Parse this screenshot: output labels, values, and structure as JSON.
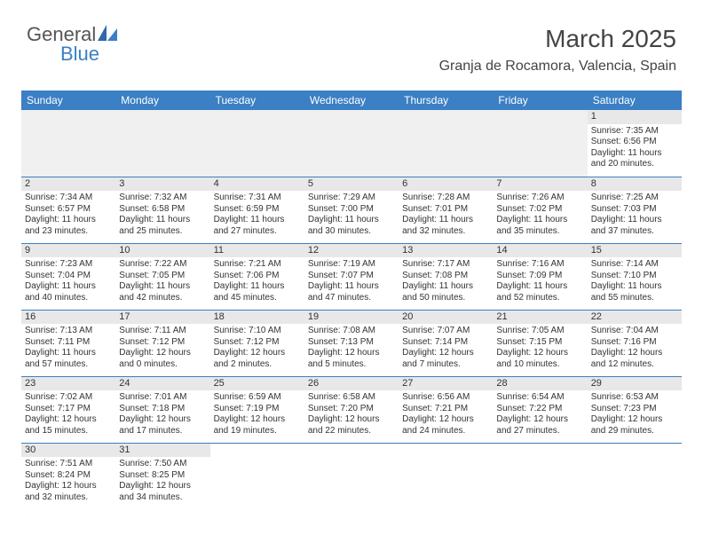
{
  "brand": {
    "part1": "General",
    "part2": "Blue"
  },
  "title": "March 2025",
  "location": "Granja de Rocamora, Valencia, Spain",
  "colors": {
    "header_bg": "#3b7fc4",
    "header_text": "#ffffff",
    "daynum_bg": "#e8e8e8",
    "empty_bg": "#f0f0f0",
    "border": "#3b7fc4",
    "page_bg": "#ffffff",
    "text": "#333333"
  },
  "weekdays": [
    "Sunday",
    "Monday",
    "Tuesday",
    "Wednesday",
    "Thursday",
    "Friday",
    "Saturday"
  ],
  "weeks": [
    [
      {
        "empty": true
      },
      {
        "empty": true
      },
      {
        "empty": true
      },
      {
        "empty": true
      },
      {
        "empty": true
      },
      {
        "empty": true
      },
      {
        "day": "1",
        "sunrise": "Sunrise: 7:35 AM",
        "sunset": "Sunset: 6:56 PM",
        "daylight1": "Daylight: 11 hours",
        "daylight2": "and 20 minutes."
      }
    ],
    [
      {
        "day": "2",
        "sunrise": "Sunrise: 7:34 AM",
        "sunset": "Sunset: 6:57 PM",
        "daylight1": "Daylight: 11 hours",
        "daylight2": "and 23 minutes."
      },
      {
        "day": "3",
        "sunrise": "Sunrise: 7:32 AM",
        "sunset": "Sunset: 6:58 PM",
        "daylight1": "Daylight: 11 hours",
        "daylight2": "and 25 minutes."
      },
      {
        "day": "4",
        "sunrise": "Sunrise: 7:31 AM",
        "sunset": "Sunset: 6:59 PM",
        "daylight1": "Daylight: 11 hours",
        "daylight2": "and 27 minutes."
      },
      {
        "day": "5",
        "sunrise": "Sunrise: 7:29 AM",
        "sunset": "Sunset: 7:00 PM",
        "daylight1": "Daylight: 11 hours",
        "daylight2": "and 30 minutes."
      },
      {
        "day": "6",
        "sunrise": "Sunrise: 7:28 AM",
        "sunset": "Sunset: 7:01 PM",
        "daylight1": "Daylight: 11 hours",
        "daylight2": "and 32 minutes."
      },
      {
        "day": "7",
        "sunrise": "Sunrise: 7:26 AM",
        "sunset": "Sunset: 7:02 PM",
        "daylight1": "Daylight: 11 hours",
        "daylight2": "and 35 minutes."
      },
      {
        "day": "8",
        "sunrise": "Sunrise: 7:25 AM",
        "sunset": "Sunset: 7:03 PM",
        "daylight1": "Daylight: 11 hours",
        "daylight2": "and 37 minutes."
      }
    ],
    [
      {
        "day": "9",
        "sunrise": "Sunrise: 7:23 AM",
        "sunset": "Sunset: 7:04 PM",
        "daylight1": "Daylight: 11 hours",
        "daylight2": "and 40 minutes."
      },
      {
        "day": "10",
        "sunrise": "Sunrise: 7:22 AM",
        "sunset": "Sunset: 7:05 PM",
        "daylight1": "Daylight: 11 hours",
        "daylight2": "and 42 minutes."
      },
      {
        "day": "11",
        "sunrise": "Sunrise: 7:21 AM",
        "sunset": "Sunset: 7:06 PM",
        "daylight1": "Daylight: 11 hours",
        "daylight2": "and 45 minutes."
      },
      {
        "day": "12",
        "sunrise": "Sunrise: 7:19 AM",
        "sunset": "Sunset: 7:07 PM",
        "daylight1": "Daylight: 11 hours",
        "daylight2": "and 47 minutes."
      },
      {
        "day": "13",
        "sunrise": "Sunrise: 7:17 AM",
        "sunset": "Sunset: 7:08 PM",
        "daylight1": "Daylight: 11 hours",
        "daylight2": "and 50 minutes."
      },
      {
        "day": "14",
        "sunrise": "Sunrise: 7:16 AM",
        "sunset": "Sunset: 7:09 PM",
        "daylight1": "Daylight: 11 hours",
        "daylight2": "and 52 minutes."
      },
      {
        "day": "15",
        "sunrise": "Sunrise: 7:14 AM",
        "sunset": "Sunset: 7:10 PM",
        "daylight1": "Daylight: 11 hours",
        "daylight2": "and 55 minutes."
      }
    ],
    [
      {
        "day": "16",
        "sunrise": "Sunrise: 7:13 AM",
        "sunset": "Sunset: 7:11 PM",
        "daylight1": "Daylight: 11 hours",
        "daylight2": "and 57 minutes."
      },
      {
        "day": "17",
        "sunrise": "Sunrise: 7:11 AM",
        "sunset": "Sunset: 7:12 PM",
        "daylight1": "Daylight: 12 hours",
        "daylight2": "and 0 minutes."
      },
      {
        "day": "18",
        "sunrise": "Sunrise: 7:10 AM",
        "sunset": "Sunset: 7:12 PM",
        "daylight1": "Daylight: 12 hours",
        "daylight2": "and 2 minutes."
      },
      {
        "day": "19",
        "sunrise": "Sunrise: 7:08 AM",
        "sunset": "Sunset: 7:13 PM",
        "daylight1": "Daylight: 12 hours",
        "daylight2": "and 5 minutes."
      },
      {
        "day": "20",
        "sunrise": "Sunrise: 7:07 AM",
        "sunset": "Sunset: 7:14 PM",
        "daylight1": "Daylight: 12 hours",
        "daylight2": "and 7 minutes."
      },
      {
        "day": "21",
        "sunrise": "Sunrise: 7:05 AM",
        "sunset": "Sunset: 7:15 PM",
        "daylight1": "Daylight: 12 hours",
        "daylight2": "and 10 minutes."
      },
      {
        "day": "22",
        "sunrise": "Sunrise: 7:04 AM",
        "sunset": "Sunset: 7:16 PM",
        "daylight1": "Daylight: 12 hours",
        "daylight2": "and 12 minutes."
      }
    ],
    [
      {
        "day": "23",
        "sunrise": "Sunrise: 7:02 AM",
        "sunset": "Sunset: 7:17 PM",
        "daylight1": "Daylight: 12 hours",
        "daylight2": "and 15 minutes."
      },
      {
        "day": "24",
        "sunrise": "Sunrise: 7:01 AM",
        "sunset": "Sunset: 7:18 PM",
        "daylight1": "Daylight: 12 hours",
        "daylight2": "and 17 minutes."
      },
      {
        "day": "25",
        "sunrise": "Sunrise: 6:59 AM",
        "sunset": "Sunset: 7:19 PM",
        "daylight1": "Daylight: 12 hours",
        "daylight2": "and 19 minutes."
      },
      {
        "day": "26",
        "sunrise": "Sunrise: 6:58 AM",
        "sunset": "Sunset: 7:20 PM",
        "daylight1": "Daylight: 12 hours",
        "daylight2": "and 22 minutes."
      },
      {
        "day": "27",
        "sunrise": "Sunrise: 6:56 AM",
        "sunset": "Sunset: 7:21 PM",
        "daylight1": "Daylight: 12 hours",
        "daylight2": "and 24 minutes."
      },
      {
        "day": "28",
        "sunrise": "Sunrise: 6:54 AM",
        "sunset": "Sunset: 7:22 PM",
        "daylight1": "Daylight: 12 hours",
        "daylight2": "and 27 minutes."
      },
      {
        "day": "29",
        "sunrise": "Sunrise: 6:53 AM",
        "sunset": "Sunset: 7:23 PM",
        "daylight1": "Daylight: 12 hours",
        "daylight2": "and 29 minutes."
      }
    ],
    [
      {
        "day": "30",
        "sunrise": "Sunrise: 7:51 AM",
        "sunset": "Sunset: 8:24 PM",
        "daylight1": "Daylight: 12 hours",
        "daylight2": "and 32 minutes."
      },
      {
        "day": "31",
        "sunrise": "Sunrise: 7:50 AM",
        "sunset": "Sunset: 8:25 PM",
        "daylight1": "Daylight: 12 hours",
        "daylight2": "and 34 minutes."
      },
      {
        "empty": true
      },
      {
        "empty": true
      },
      {
        "empty": true
      },
      {
        "empty": true
      },
      {
        "empty": true
      }
    ]
  ]
}
